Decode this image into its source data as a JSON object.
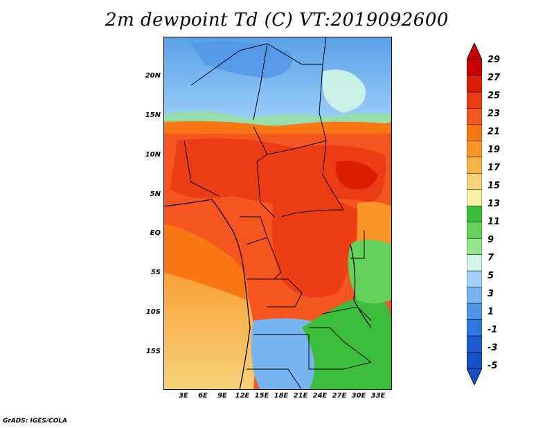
{
  "title": "2m dewpoint Td (C) VT:2019092600",
  "footer": "GrADS: IGES/COLA",
  "map": {
    "variable": "2m dewpoint",
    "units": "C",
    "valid_time": "2019092600",
    "lat_range": [
      -20,
      25
    ],
    "lon_range": [
      0,
      35
    ],
    "lat_ticks": [
      "20N",
      "15N",
      "10N",
      "5N",
      "EQ",
      "5S",
      "10S",
      "15S"
    ],
    "lon_ticks": [
      "3E",
      "6E",
      "9E",
      "12E",
      "15E",
      "18E",
      "21E",
      "24E",
      "27E",
      "30E",
      "33E"
    ]
  },
  "colorbar": {
    "levels": [
      "29",
      "27",
      "25",
      "23",
      "21",
      "19",
      "17",
      "15",
      "13",
      "11",
      "9",
      "7",
      "5",
      "3",
      "1",
      "-1",
      "-3",
      "-5"
    ],
    "colors": [
      "#c80000",
      "#dc1e00",
      "#eb3c14",
      "#f5551e",
      "#fa7814",
      "#fa9628",
      "#f5b446",
      "#f5d278",
      "#faf0aa",
      "#3cbe3c",
      "#64d25a",
      "#96e68c",
      "#d2f5e6",
      "#a0d2fa",
      "#78b4f0",
      "#5096e6",
      "#2d78e1",
      "#1e5ad2",
      "#1450c8"
    ]
  }
}
